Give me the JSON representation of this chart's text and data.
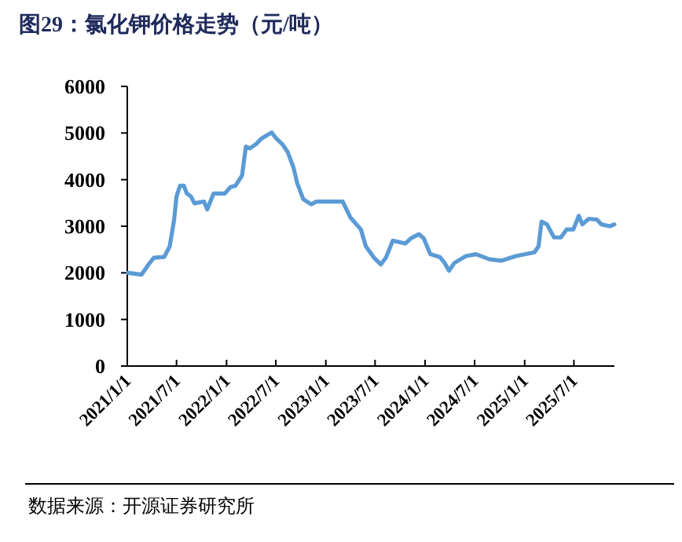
{
  "chart_data": {
    "type": "line",
    "title": "图29：氯化钾价格走势（元/吨）",
    "annotations": [
      "数据来源：开源证券研究所"
    ],
    "x": [
      "2021-01-04",
      "2021-02-22",
      "2021-03-20",
      "2021-04-09",
      "2021-05-17",
      "2021-06-06",
      "2021-06-22",
      "2021-07-01",
      "2021-07-14",
      "2021-07-28",
      "2021-08-08",
      "2021-08-23",
      "2021-09-05",
      "2021-10-10",
      "2021-10-22",
      "2021-11-14",
      "2021-12-26",
      "2022-01-15",
      "2022-02-03",
      "2022-02-27",
      "2022-03-13",
      "2022-03-27",
      "2022-04-19",
      "2022-05-09",
      "2022-05-29",
      "2022-06-16",
      "2022-07-03",
      "2022-07-25",
      "2022-08-14",
      "2022-09-04",
      "2022-09-18",
      "2022-10-10",
      "2022-11-08",
      "2022-11-28",
      "2023-03-04",
      "2023-04-01",
      "2023-05-10",
      "2023-05-28",
      "2023-06-27",
      "2023-07-22",
      "2023-08-10",
      "2023-09-04",
      "2023-10-20",
      "2023-11-10",
      "2023-12-09",
      "2023-12-27",
      "2024-01-20",
      "2024-02-24",
      "2024-03-13",
      "2024-03-29",
      "2024-04-17",
      "2024-05-30",
      "2024-07-06",
      "2024-08-25",
      "2024-10-06",
      "2024-11-30",
      "2025-02-06",
      "2025-02-21",
      "2025-03-04",
      "2025-03-24",
      "2025-04-19",
      "2025-05-14",
      "2025-06-04",
      "2025-06-29",
      "2025-07-19",
      "2025-08-01",
      "2025-08-25",
      "2025-09-24",
      "2025-10-10",
      "2025-11-10",
      "2025-11-27"
    ],
    "series": [
      {
        "color": "#5b9bd5",
        "values": [
          2000,
          1960,
          2180,
          2325,
          2340,
          2570,
          3130,
          3640,
          3870,
          3870,
          3700,
          3640,
          3490,
          3530,
          3360,
          3700,
          3700,
          3840,
          3870,
          4090,
          4710,
          4670,
          4760,
          4880,
          4950,
          5010,
          4880,
          4760,
          4590,
          4260,
          3920,
          3580,
          3470,
          3530,
          3530,
          3190,
          2930,
          2570,
          2325,
          2180,
          2325,
          2690,
          2630,
          2740,
          2830,
          2740,
          2400,
          2340,
          2210,
          2045,
          2210,
          2360,
          2400,
          2290,
          2260,
          2360,
          2440,
          2570,
          3100,
          3040,
          2760,
          2760,
          2930,
          2930,
          3225,
          3040,
          3160,
          3140,
          3040,
          3000,
          3040
        ]
      }
    ],
    "xlim": [
      "2021-01-01",
      "2025-11-27"
    ],
    "xticks": [
      {
        "value": "2021-01-01",
        "label": "2021/1/1"
      },
      {
        "value": "2021-07-01",
        "label": "2021/7/1"
      },
      {
        "value": "2022-01-01",
        "label": "2022/1/1"
      },
      {
        "value": "2022-07-01",
        "label": "2022/7/1"
      },
      {
        "value": "2023-01-01",
        "label": "2023/1/1"
      },
      {
        "value": "2023-07-01",
        "label": "2023/7/1"
      },
      {
        "value": "2024-01-01",
        "label": "2024/1/1"
      },
      {
        "value": "2024-07-01",
        "label": "2024/7/1"
      },
      {
        "value": "2025-01-01",
        "label": "2025/1/1"
      },
      {
        "value": "2025-07-01",
        "label": "2025/7/1"
      }
    ],
    "ylim": [
      0,
      6000
    ],
    "yticks": [
      0,
      1000,
      2000,
      3000,
      4000,
      5000,
      6000
    ],
    "marker": "none",
    "line_style": "solid"
  }
}
